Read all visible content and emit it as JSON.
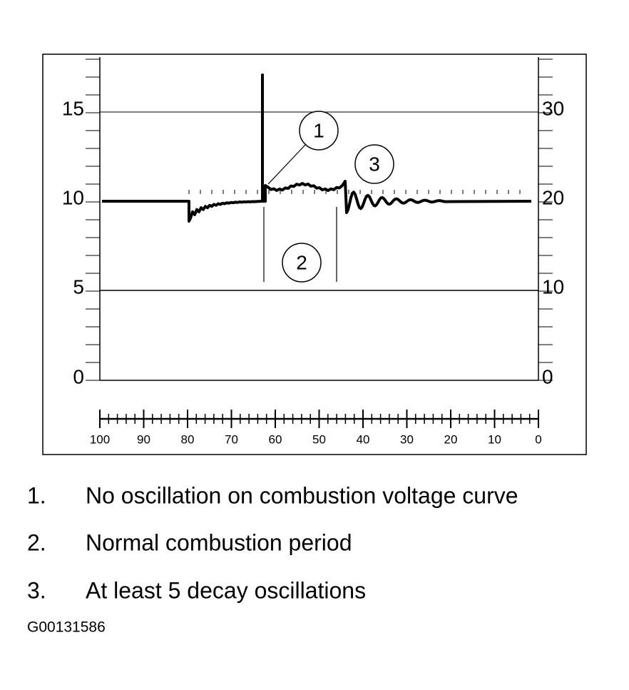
{
  "left_axis": {
    "ticks": [
      "0",
      "5",
      "10",
      "15"
    ]
  },
  "right_axis": {
    "ticks": [
      "0",
      "10",
      "20",
      "30"
    ]
  },
  "time_axis": {
    "ticks": [
      "100",
      "90",
      "80",
      "70",
      "60",
      "50",
      "40",
      "30",
      "20",
      "10",
      "0"
    ]
  },
  "callouts": [
    "1",
    "2",
    "3"
  ],
  "legend": [
    {
      "number": "1.",
      "text": "No oscillation on combustion voltage curve"
    },
    {
      "number": "2.",
      "text": "Normal combustion period"
    },
    {
      "number": "3.",
      "text": "At least 5 decay oscillations"
    }
  ],
  "figure_id": "G00131586"
}
